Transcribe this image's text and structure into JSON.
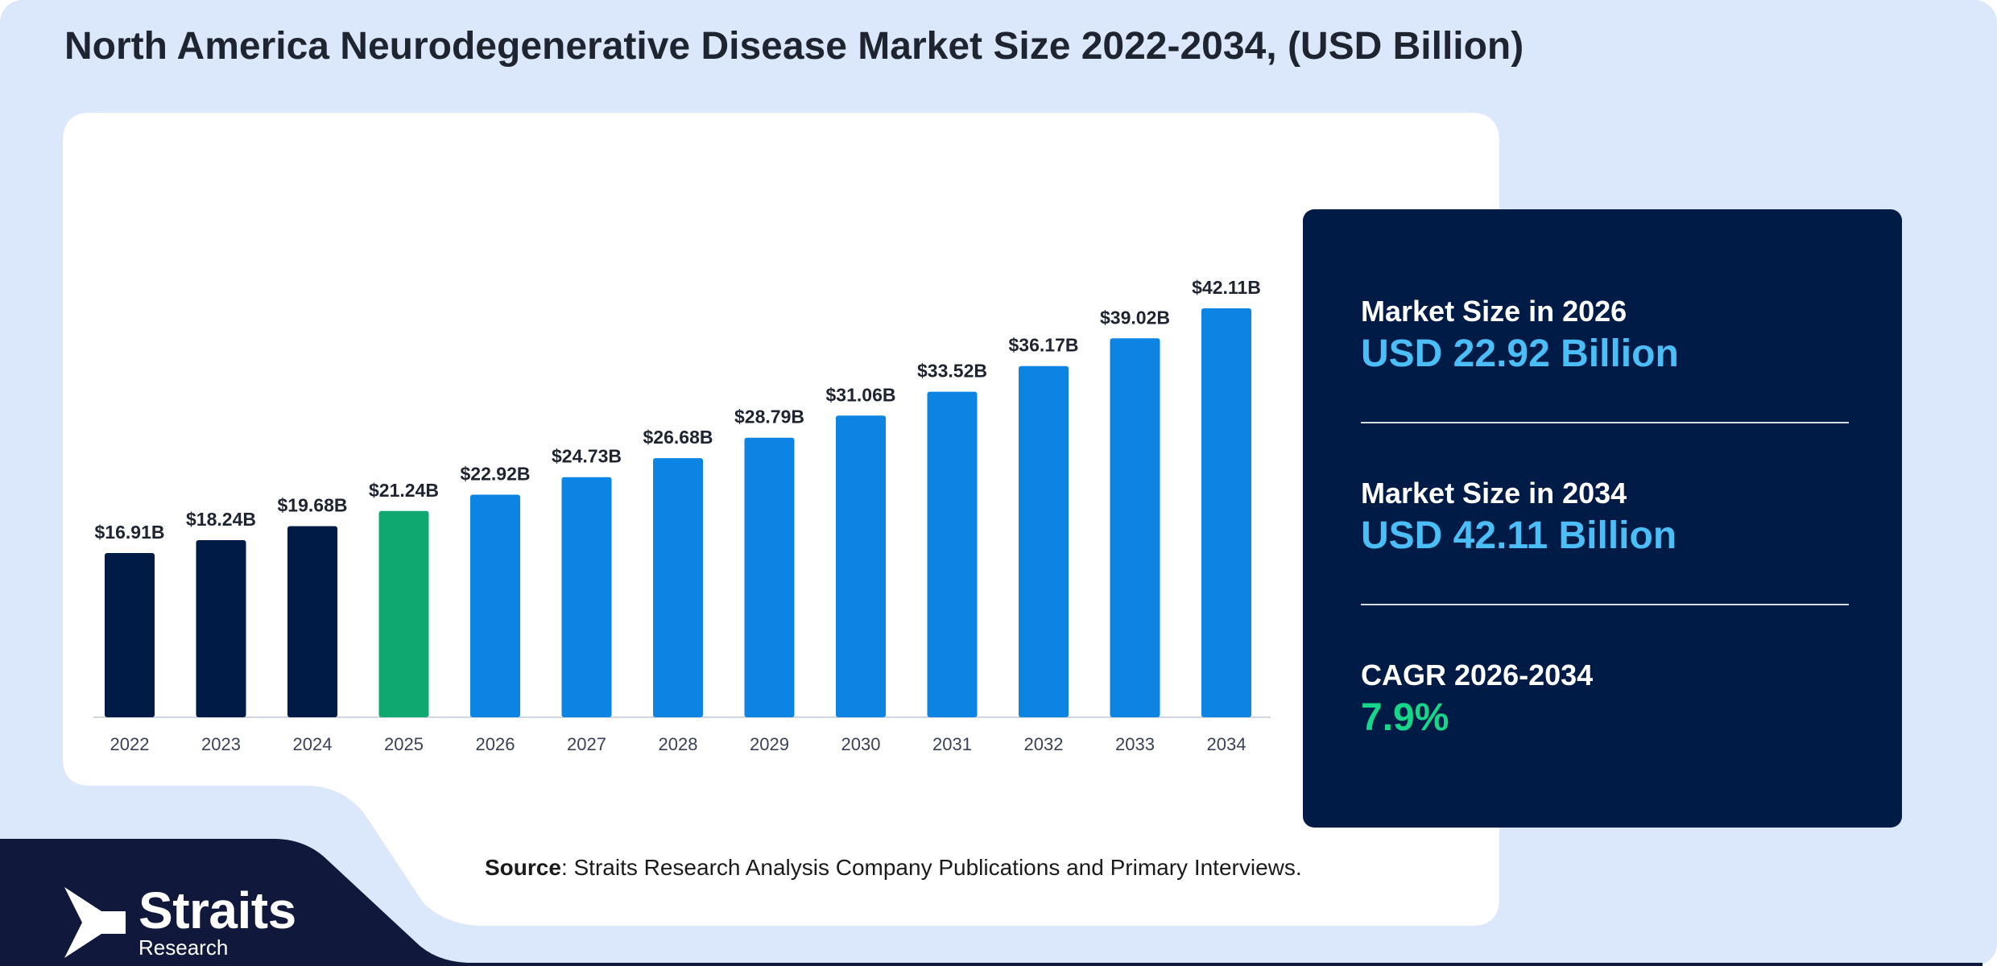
{
  "title": "North America Neurodegenerative Disease Market Size 2022-2034, (USD Billion)",
  "chart_data": {
    "type": "bar",
    "categories": [
      "2022",
      "2023",
      "2024",
      "2025",
      "2026",
      "2027",
      "2028",
      "2029",
      "2030",
      "2031",
      "2032",
      "2033",
      "2034"
    ],
    "values": [
      16.91,
      18.24,
      19.68,
      21.24,
      22.92,
      24.73,
      26.68,
      28.79,
      31.06,
      33.52,
      36.17,
      39.02,
      42.11
    ],
    "data_labels": [
      "$16.91B",
      "$18.24B",
      "$19.68B",
      "$21.24B",
      "$22.92B",
      "$24.73B",
      "$26.68B",
      "$28.79B",
      "$31.06B",
      "$33.52B",
      "$36.17B",
      "$39.02B",
      "$42.11B"
    ],
    "bar_colors": [
      "#001c46",
      "#001c46",
      "#001c46",
      "#0fa870",
      "#0b84e3",
      "#0b84e3",
      "#0b84e3",
      "#0b84e3",
      "#0b84e3",
      "#0b84e3",
      "#0b84e3",
      "#0b84e3",
      "#0b84e3"
    ],
    "ylim": [
      0,
      42.11
    ],
    "grid": false,
    "legend": "none"
  },
  "stats": [
    {
      "label": "Market Size in 2026",
      "value": "USD 22.92 Billion",
      "color": "#4bbef7"
    },
    {
      "label": "Market Size in 2034",
      "value": "USD 42.11 Billion",
      "color": "#4bbef7"
    },
    {
      "label": "CAGR 2026-2034",
      "value": "7.9%",
      "color": "#17d68a"
    }
  ],
  "source": {
    "label": "Source",
    "text": ": Straits Research Analysis Company Publications and Primary Interviews."
  },
  "logo": {
    "name": "Straits",
    "sub": "Research"
  },
  "colors": {
    "page_bg": "#dbe7fa",
    "card_bg": "#ffffff",
    "navy": "#001c46",
    "footer_navy": "#10193b",
    "bar_blue": "#0b84e3",
    "bar_green": "#0fa870",
    "cagr_green": "#17d68a",
    "stat_blue": "#4bbef7"
  }
}
